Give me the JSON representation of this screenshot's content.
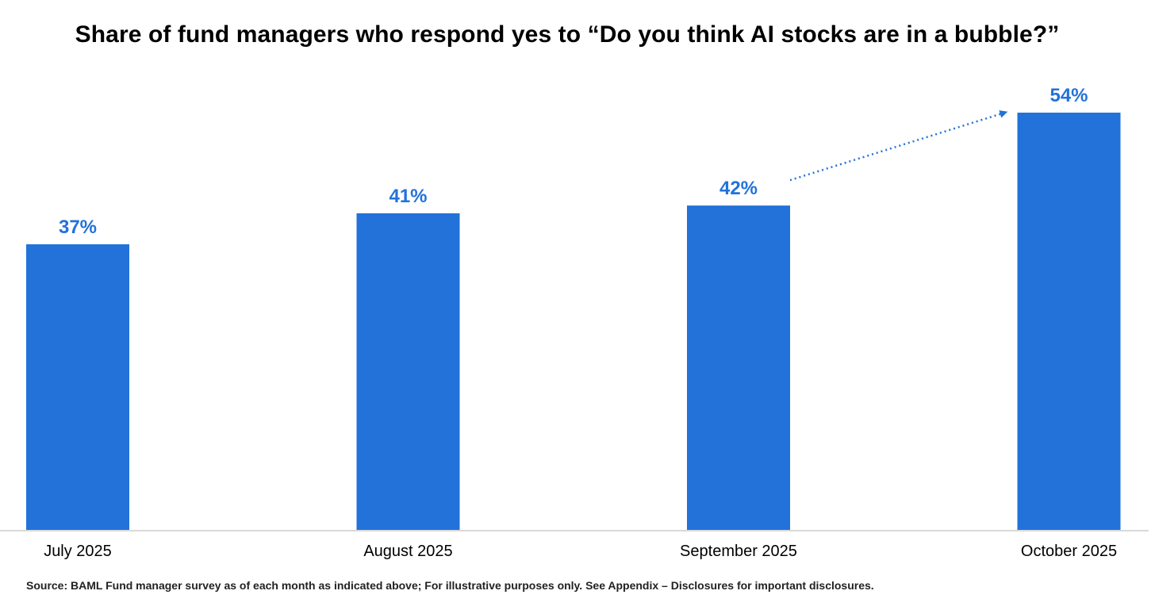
{
  "chart_data": {
    "type": "bar",
    "title": "Share of fund managers who respond yes to “Do you think AI stocks are in a bubble?”",
    "categories": [
      "July 2025",
      "August 2025",
      "September 2025",
      "October 2025"
    ],
    "values": [
      37,
      41,
      42,
      54
    ],
    "data_labels": [
      "37%",
      "41%",
      "42%",
      "54%"
    ],
    "xlabel": "",
    "ylabel": "",
    "ylim": [
      0,
      54
    ],
    "grid": false,
    "legend": "none",
    "bar_color": "#2272DA",
    "label_color": "#2272DA",
    "annotations": [
      {
        "type": "dotted-arrow",
        "from_category": "September 2025",
        "to_category": "October 2025"
      }
    ]
  },
  "footer": {
    "source": "Source: BAML Fund manager survey as of each month as indicated above; For illustrative purposes only.  See Appendix – Disclosures for important disclosures."
  }
}
